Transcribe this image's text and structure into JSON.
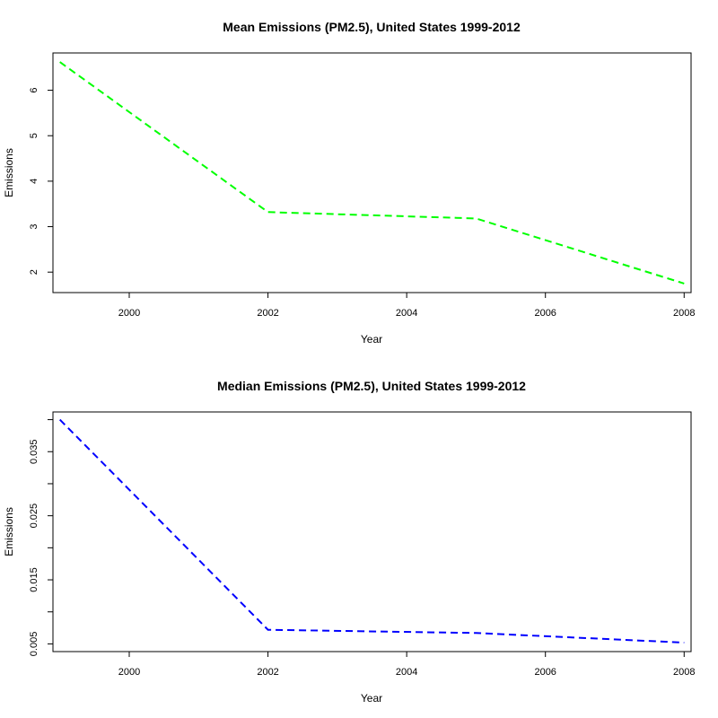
{
  "chart_data": [
    {
      "type": "line",
      "title": "Mean Emissions (PM2.5), United States 1999-2012",
      "xlabel": "Year",
      "ylabel": "Emissions",
      "x": [
        1999,
        2002,
        2005,
        2008
      ],
      "series": [
        {
          "values": [
            6.62,
            3.32,
            3.18,
            1.75
          ],
          "color": "#00ff00",
          "line_style": "dashed"
        }
      ],
      "xlim": [
        1998.9,
        2008.1
      ],
      "ylim": [
        1.55,
        6.82
      ],
      "xticks": [
        2000,
        2002,
        2004,
        2006,
        2008
      ],
      "xtick_labels": [
        "2000",
        "2002",
        "2004",
        "2006",
        "2008"
      ],
      "yticks": [
        2,
        3,
        4,
        5,
        6
      ],
      "ytick_labels": [
        "2",
        "3",
        "4",
        "5",
        "6"
      ],
      "grid": false,
      "legend": "none"
    },
    {
      "type": "line",
      "title": "Median Emissions (PM2.5), United States 1999-2012",
      "xlabel": "Year",
      "ylabel": "Emissions",
      "x": [
        1999,
        2002,
        2005,
        2008
      ],
      "series": [
        {
          "values": [
            0.04,
            0.0072,
            0.0067,
            0.0052
          ],
          "color": "#0000ff",
          "line_style": "dashed"
        }
      ],
      "xlim": [
        1998.9,
        2008.1
      ],
      "ylim": [
        0.0038,
        0.0412
      ],
      "xticks": [
        2000,
        2002,
        2004,
        2006,
        2008
      ],
      "xtick_labels": [
        "2000",
        "2002",
        "2004",
        "2006",
        "2008"
      ],
      "yticks": [
        0.005,
        0.01,
        0.015,
        0.02,
        0.025,
        0.03,
        0.035,
        0.04
      ],
      "ytick_labels": [
        "0.005",
        "",
        "0.015",
        "",
        "0.025",
        "",
        "0.035",
        ""
      ],
      "grid": false,
      "legend": "none"
    }
  ]
}
